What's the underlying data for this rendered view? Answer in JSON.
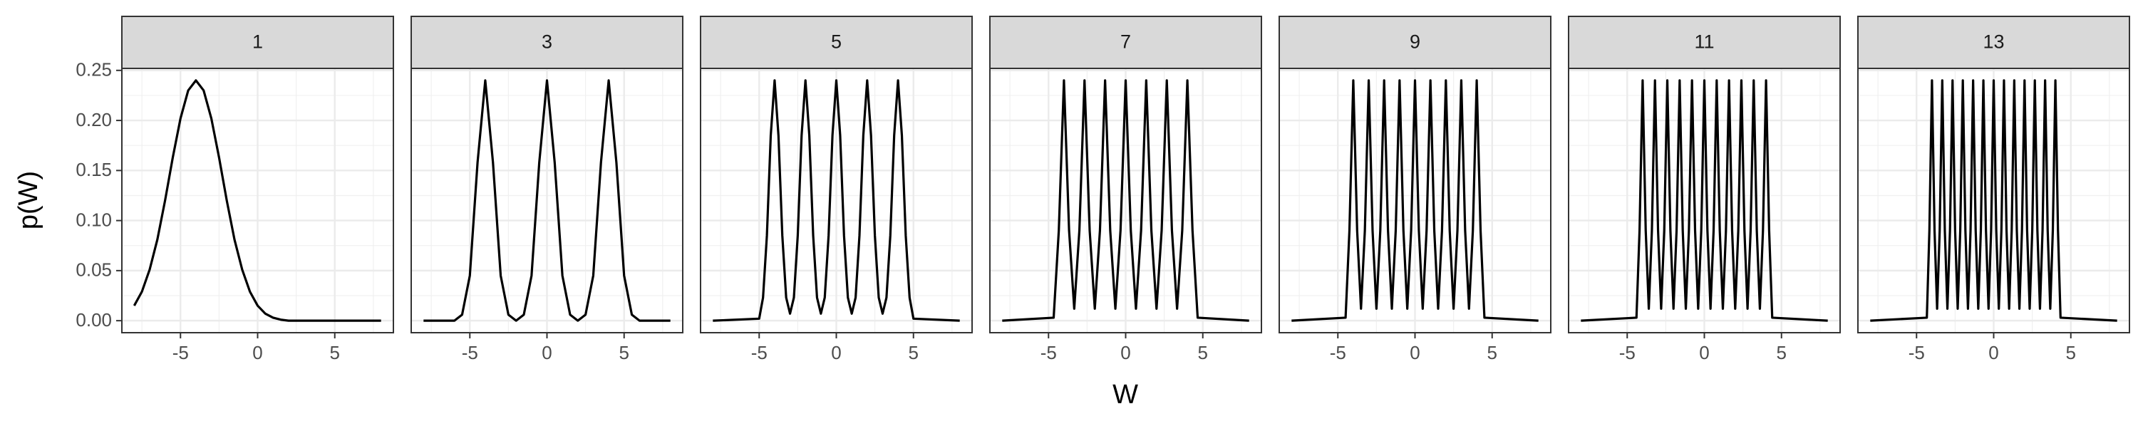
{
  "chart_data": {
    "type": "line",
    "x_label": "W",
    "y_label": "p(W)",
    "xlim": [
      -8.8,
      8.8
    ],
    "ylim": [
      -0.012,
      0.252
    ],
    "xticks": [
      -5,
      0,
      5
    ],
    "minor_xticks": [
      -7.5,
      -2.5,
      2.5,
      7.5
    ],
    "yticks": [
      {
        "value": 0,
        "label": "0.00"
      },
      {
        "value": 0.05,
        "label": "0.05"
      },
      {
        "value": 0.1,
        "label": "0.10"
      },
      {
        "value": 0.15,
        "label": "0.15"
      },
      {
        "value": 0.2,
        "label": "0.20"
      },
      {
        "value": 0.25,
        "label": "0.25"
      }
    ],
    "minor_yticks": [
      0.025,
      0.075,
      0.125,
      0.175,
      0.225
    ],
    "grid": true,
    "series": [
      {
        "name": "1",
        "color": "#000000",
        "x": [
          -8,
          -7.5,
          -7,
          -6.5,
          -6,
          -5.5,
          -5,
          -4.5,
          -4,
          -3.5,
          -3,
          -2.5,
          -2,
          -1.5,
          -1,
          -0.5,
          0,
          0.5,
          1,
          1.5,
          2,
          3,
          4,
          5,
          6,
          7,
          8
        ],
        "values": [
          0.015,
          0.029,
          0.051,
          0.081,
          0.12,
          0.163,
          0.202,
          0.23,
          0.24,
          0.23,
          0.202,
          0.163,
          0.12,
          0.081,
          0.051,
          0.029,
          0.015,
          0.007,
          0.003,
          0.001,
          0,
          0,
          0,
          0,
          0,
          0,
          0
        ]
      },
      {
        "name": "3",
        "color": "#000000",
        "x": [
          -8,
          -6,
          -5.5,
          -5,
          -4.5,
          -4,
          -3.5,
          -3,
          -2.5,
          -2,
          -1.5,
          -1,
          -0.5,
          0,
          0.5,
          1,
          1.5,
          2,
          2.5,
          3,
          3.5,
          4,
          4.5,
          5,
          5.5,
          6,
          8
        ],
        "values": [
          0,
          0,
          0.006,
          0.045,
          0.158,
          0.24,
          0.158,
          0.045,
          0.006,
          0,
          0.006,
          0.045,
          0.158,
          0.24,
          0.158,
          0.045,
          0.006,
          0,
          0.006,
          0.045,
          0.158,
          0.24,
          0.158,
          0.045,
          0.006,
          0,
          0
        ]
      },
      {
        "name": "5",
        "color": "#000000",
        "x": [
          -8,
          -5,
          -4.75,
          -4.5,
          -4.25,
          -4,
          -3.75,
          -3.5,
          -3.25,
          -3,
          -2.75,
          -2.5,
          -2.25,
          -2,
          -1.75,
          -1.5,
          -1.25,
          -1,
          -0.75,
          -0.5,
          -0.25,
          0,
          0.25,
          0.5,
          0.75,
          1,
          1.25,
          1.5,
          1.75,
          2,
          2.25,
          2.5,
          2.75,
          3,
          3.25,
          3.5,
          3.75,
          4,
          4.25,
          4.5,
          4.75,
          5,
          8
        ],
        "values": [
          0,
          0.002,
          0.023,
          0.085,
          0.185,
          0.24,
          0.185,
          0.085,
          0.023,
          0.007,
          0.023,
          0.085,
          0.185,
          0.24,
          0.185,
          0.085,
          0.023,
          0.007,
          0.023,
          0.085,
          0.185,
          0.24,
          0.185,
          0.085,
          0.023,
          0.007,
          0.023,
          0.085,
          0.185,
          0.24,
          0.185,
          0.085,
          0.023,
          0.007,
          0.023,
          0.085,
          0.185,
          0.24,
          0.185,
          0.085,
          0.023,
          0.002,
          0
        ]
      },
      {
        "name": "7",
        "color": "#000000",
        "x": [
          -8,
          -4.667,
          -4.333,
          -4,
          -3.667,
          -3.333,
          -3,
          -2.667,
          -2.333,
          -2,
          -1.667,
          -1.333,
          -1,
          -0.667,
          -0.333,
          0,
          0.333,
          0.667,
          1,
          1.333,
          1.667,
          2,
          2.333,
          2.667,
          3,
          3.333,
          3.667,
          4,
          4.333,
          4.667,
          8
        ],
        "values": [
          0,
          0.003,
          0.09,
          0.24,
          0.09,
          0.012,
          0.09,
          0.24,
          0.09,
          0.012,
          0.09,
          0.24,
          0.09,
          0.012,
          0.09,
          0.24,
          0.09,
          0.012,
          0.09,
          0.24,
          0.09,
          0.012,
          0.09,
          0.24,
          0.09,
          0.012,
          0.09,
          0.24,
          0.09,
          0.003,
          0
        ]
      },
      {
        "name": "9",
        "color": "#000000",
        "x": [
          -8,
          -4.5,
          -4.25,
          -4,
          -3.75,
          -3.5,
          -3.25,
          -3,
          -2.75,
          -2.5,
          -2.25,
          -2,
          -1.75,
          -1.5,
          -1.25,
          -1,
          -0.75,
          -0.5,
          -0.25,
          0,
          0.25,
          0.5,
          0.75,
          1,
          1.25,
          1.5,
          1.75,
          2,
          2.25,
          2.5,
          2.75,
          3,
          3.25,
          3.5,
          3.75,
          4,
          4.25,
          4.5,
          8
        ],
        "values": [
          0,
          0.003,
          0.09,
          0.24,
          0.09,
          0.012,
          0.09,
          0.24,
          0.09,
          0.012,
          0.09,
          0.24,
          0.09,
          0.012,
          0.09,
          0.24,
          0.09,
          0.012,
          0.09,
          0.24,
          0.09,
          0.012,
          0.09,
          0.24,
          0.09,
          0.012,
          0.09,
          0.24,
          0.09,
          0.012,
          0.09,
          0.24,
          0.09,
          0.012,
          0.09,
          0.24,
          0.09,
          0.003,
          0
        ]
      },
      {
        "name": "11",
        "color": "#000000",
        "x": [
          -8,
          -4.4,
          -4.2,
          -4,
          -3.8,
          -3.6,
          -3.4,
          -3.2,
          -3,
          -2.8,
          -2.6,
          -2.4,
          -2.2,
          -2,
          -1.8,
          -1.6,
          -1.4,
          -1.2,
          -1,
          -0.8,
          -0.6,
          -0.4,
          -0.2,
          0,
          0.2,
          0.4,
          0.6,
          0.8,
          1,
          1.2,
          1.4,
          1.6,
          1.8,
          2,
          2.2,
          2.4,
          2.6,
          2.8,
          3,
          3.2,
          3.4,
          3.6,
          3.8,
          4,
          4.2,
          4.4,
          8
        ],
        "values": [
          0,
          0.003,
          0.09,
          0.24,
          0.09,
          0.012,
          0.09,
          0.24,
          0.09,
          0.012,
          0.09,
          0.24,
          0.09,
          0.012,
          0.09,
          0.24,
          0.09,
          0.012,
          0.09,
          0.24,
          0.09,
          0.012,
          0.09,
          0.24,
          0.09,
          0.012,
          0.09,
          0.24,
          0.09,
          0.012,
          0.09,
          0.24,
          0.09,
          0.012,
          0.09,
          0.24,
          0.09,
          0.012,
          0.09,
          0.24,
          0.09,
          0.012,
          0.09,
          0.24,
          0.09,
          0.003,
          0
        ]
      },
      {
        "name": "13",
        "color": "#000000",
        "x": [
          -8,
          -4.333,
          -4.167,
          -4,
          -3.833,
          -3.667,
          -3.5,
          -3.333,
          -3.167,
          -3,
          -2.833,
          -2.667,
          -2.5,
          -2.333,
          -2.167,
          -2,
          -1.833,
          -1.667,
          -1.5,
          -1.333,
          -1.167,
          -1,
          -0.833,
          -0.667,
          -0.5,
          -0.333,
          -0.167,
          0,
          0.167,
          0.333,
          0.5,
          0.667,
          0.833,
          1,
          1.167,
          1.333,
          1.5,
          1.667,
          1.833,
          2,
          2.167,
          2.333,
          2.5,
          2.667,
          2.833,
          3,
          3.167,
          3.333,
          3.5,
          3.667,
          3.833,
          4,
          4.167,
          4.333,
          8
        ],
        "values": [
          0,
          0.003,
          0.09,
          0.24,
          0.09,
          0.012,
          0.09,
          0.24,
          0.09,
          0.012,
          0.09,
          0.24,
          0.09,
          0.012,
          0.09,
          0.24,
          0.09,
          0.012,
          0.09,
          0.24,
          0.09,
          0.012,
          0.09,
          0.24,
          0.09,
          0.012,
          0.09,
          0.24,
          0.09,
          0.012,
          0.09,
          0.24,
          0.09,
          0.012,
          0.09,
          0.24,
          0.09,
          0.012,
          0.09,
          0.24,
          0.09,
          0.012,
          0.09,
          0.24,
          0.09,
          0.012,
          0.09,
          0.24,
          0.09,
          0.012,
          0.09,
          0.24,
          0.09,
          0.003,
          0
        ]
      }
    ]
  }
}
